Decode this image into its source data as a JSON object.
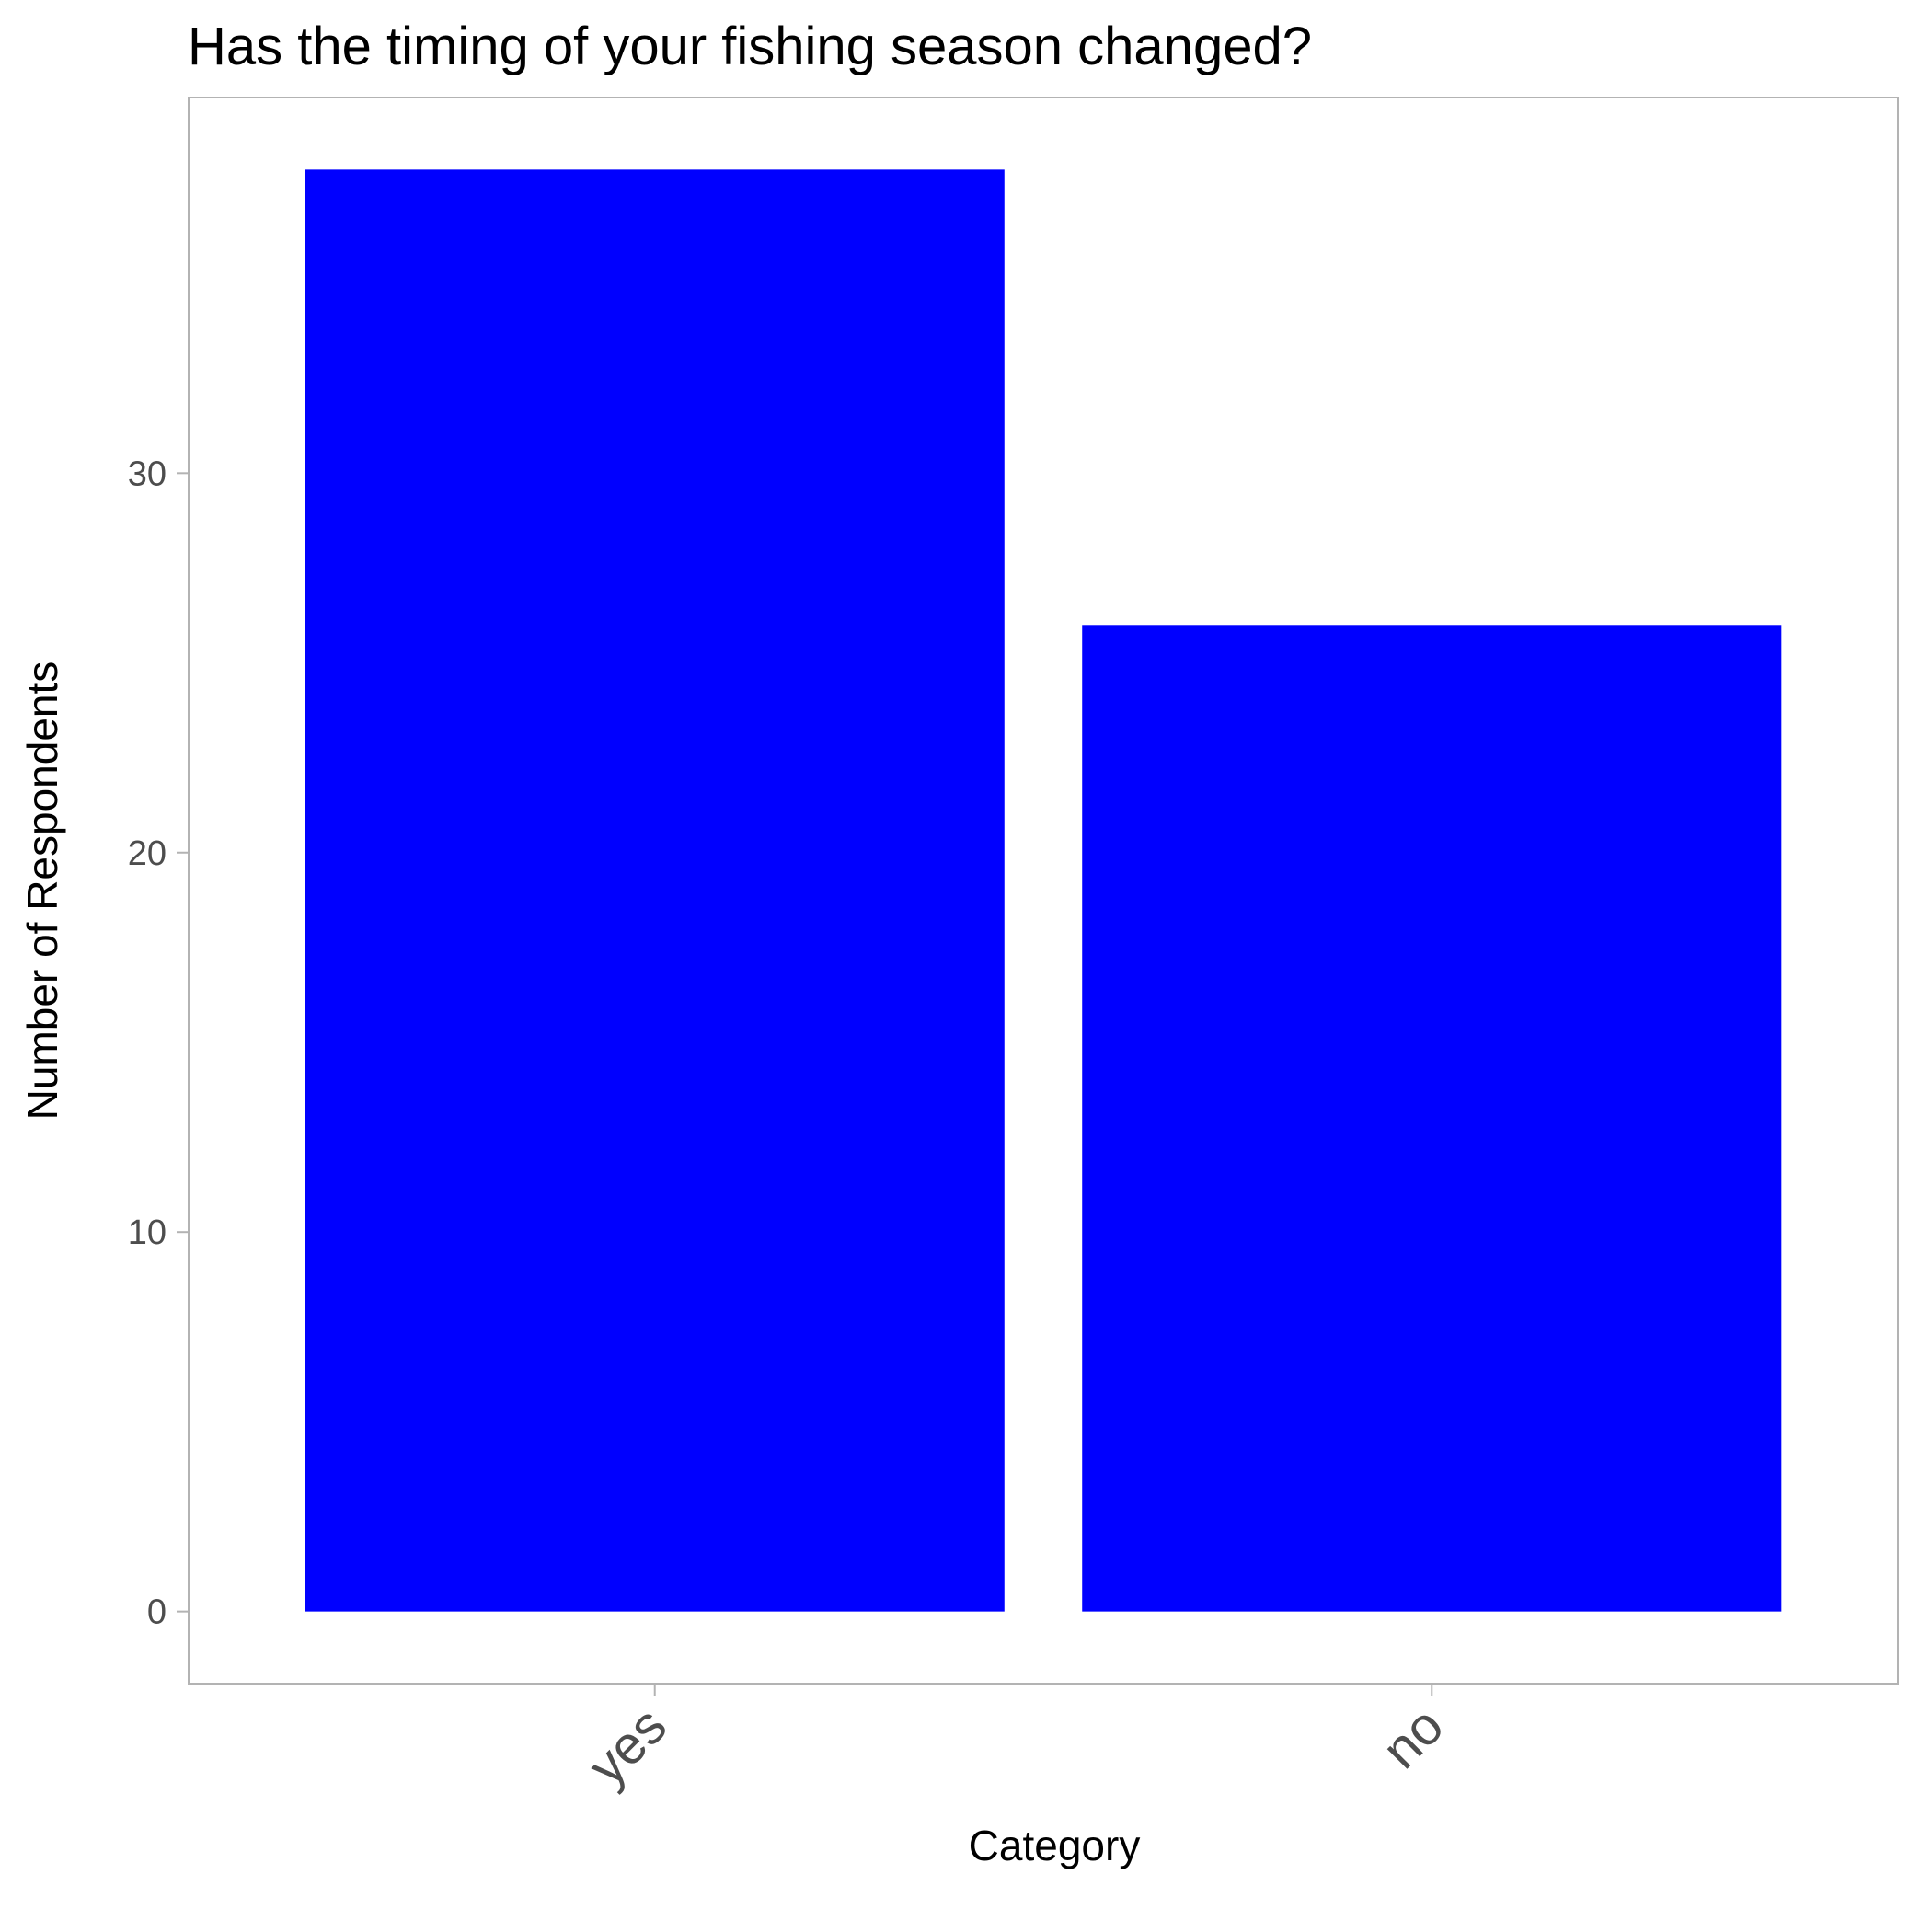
{
  "chart_data": {
    "type": "bar",
    "title": "Has the timing of your fishing season changed?",
    "xlabel": "Category",
    "ylabel": "Number of Respondents",
    "categories": [
      "yes",
      "no"
    ],
    "values": [
      38,
      26
    ],
    "yticks": [
      0,
      10,
      20,
      30
    ],
    "ylim": [
      -1.9,
      39.9
    ],
    "grid": false,
    "bar_color": "#0000ff",
    "panel_border_color": "#b3b3b3",
    "tick_color": "#b3b3b3"
  }
}
